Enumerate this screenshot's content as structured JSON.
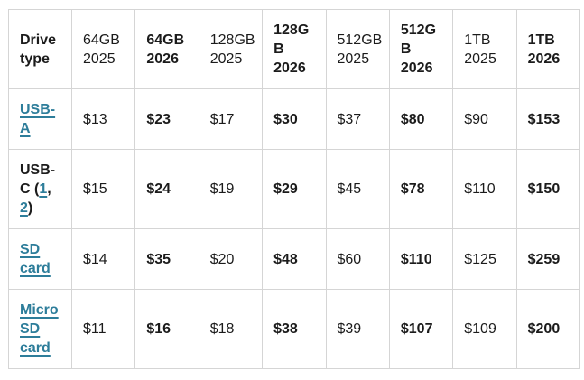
{
  "colors": {
    "link": "#2d7d9a",
    "text": "#1b1b1b",
    "border_outer": "#6f6f6f",
    "border_inner": "#d5d5d5",
    "background": "#ffffff"
  },
  "table": {
    "columns": [
      {
        "text": "Drive type",
        "lines": [
          "Drive",
          "type"
        ],
        "bold": true
      },
      {
        "text": "64GB 2025",
        "lines": [
          "64GB",
          "2025"
        ],
        "bold": false
      },
      {
        "text": "64GB 2026",
        "lines": [
          "64GB",
          "2026"
        ],
        "bold": true
      },
      {
        "text": "128GB 2025",
        "lines": [
          "128GB",
          "2025"
        ],
        "bold": false
      },
      {
        "text": "128GB 2026",
        "lines": [
          "128G",
          "B",
          "2026"
        ],
        "bold": true
      },
      {
        "text": "512GB 2025",
        "lines": [
          "512GB",
          "2025"
        ],
        "bold": false
      },
      {
        "text": "512GB 2026",
        "lines": [
          "512G",
          "B",
          "2026"
        ],
        "bold": true
      },
      {
        "text": "1TB 2025",
        "lines": [
          "1TB",
          "2025"
        ],
        "bold": false
      },
      {
        "text": "1TB 2026",
        "lines": [
          "1TB",
          "2026"
        ],
        "bold": true
      }
    ],
    "rows": [
      {
        "label_segments": [
          {
            "text": "USB-A",
            "link": true,
            "name": "usb-a-link"
          }
        ],
        "cells": [
          {
            "value": "$13",
            "bold": false
          },
          {
            "value": "$23",
            "bold": true
          },
          {
            "value": "$17",
            "bold": false
          },
          {
            "value": "$30",
            "bold": true
          },
          {
            "value": "$37",
            "bold": false
          },
          {
            "value": "$80",
            "bold": true
          },
          {
            "value": "$90",
            "bold": false
          },
          {
            "value": "$153",
            "bold": true
          }
        ]
      },
      {
        "label_segments": [
          {
            "text": "USB-C (",
            "link": false
          },
          {
            "text": "1",
            "link": true,
            "name": "footnote-1-link"
          },
          {
            "text": ", ",
            "link": false
          },
          {
            "text": "2",
            "link": true,
            "name": "footnote-2-link"
          },
          {
            "text": ")",
            "link": false
          }
        ],
        "cells": [
          {
            "value": "$15",
            "bold": false
          },
          {
            "value": "$24",
            "bold": true
          },
          {
            "value": "$19",
            "bold": false
          },
          {
            "value": "$29",
            "bold": true
          },
          {
            "value": "$45",
            "bold": false
          },
          {
            "value": "$78",
            "bold": true
          },
          {
            "value": "$110",
            "bold": false
          },
          {
            "value": "$150",
            "bold": true
          }
        ]
      },
      {
        "label_segments": [
          {
            "text": "SD card",
            "link": true,
            "name": "sd-card-link"
          }
        ],
        "cells": [
          {
            "value": "$14",
            "bold": false
          },
          {
            "value": "$35",
            "bold": true
          },
          {
            "value": "$20",
            "bold": false
          },
          {
            "value": "$48",
            "bold": true
          },
          {
            "value": "$60",
            "bold": false
          },
          {
            "value": "$110",
            "bold": true
          },
          {
            "value": "$125",
            "bold": false
          },
          {
            "value": "$259",
            "bold": true
          }
        ]
      },
      {
        "label_segments": [
          {
            "text": "Micro SD card",
            "link": true,
            "name": "micro-sd-card-link"
          }
        ],
        "cells": [
          {
            "value": "$11",
            "bold": false
          },
          {
            "value": "$16",
            "bold": true
          },
          {
            "value": "$18",
            "bold": false
          },
          {
            "value": "$38",
            "bold": true
          },
          {
            "value": "$39",
            "bold": false
          },
          {
            "value": "$107",
            "bold": true
          },
          {
            "value": "$109",
            "bold": false
          },
          {
            "value": "$200",
            "bold": true
          }
        ]
      }
    ]
  },
  "chart_data": {
    "type": "table",
    "title": "",
    "unit": "USD",
    "columns": [
      "Drive type",
      "64GB 2025",
      "64GB 2026",
      "128GB 2025",
      "128GB 2026",
      "512GB 2025",
      "512GB 2026",
      "1TB 2025",
      "1TB 2026"
    ],
    "rows": [
      {
        "drive_type": "USB-A",
        "values": [
          13,
          23,
          17,
          30,
          37,
          80,
          90,
          153
        ]
      },
      {
        "drive_type": "USB-C (1, 2)",
        "values": [
          15,
          24,
          19,
          29,
          45,
          78,
          110,
          150
        ]
      },
      {
        "drive_type": "SD card",
        "values": [
          14,
          35,
          20,
          48,
          60,
          110,
          125,
          259
        ]
      },
      {
        "drive_type": "Micro SD card",
        "values": [
          11,
          16,
          18,
          38,
          39,
          107,
          109,
          200
        ]
      }
    ],
    "notes": "2026 price columns are rendered bold; 2025 columns regular weight. Row labels are teal underlined links except the literal text of USB-C, whose footnote markers 1 and 2 are links."
  }
}
